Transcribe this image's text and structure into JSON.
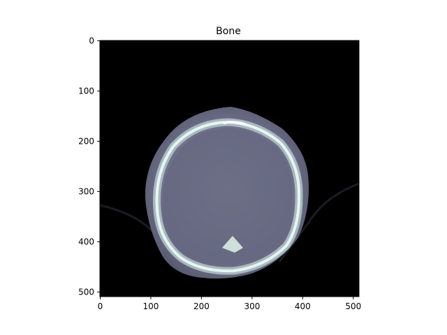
{
  "figure": {
    "title": "Bone",
    "x_ticks": [
      "0",
      "100",
      "200",
      "300",
      "400",
      "500"
    ],
    "y_ticks": [
      "0",
      "100",
      "200",
      "300",
      "400",
      "500"
    ],
    "image_extent": [
      0,
      512
    ],
    "colormap": "bone",
    "colors": {
      "background": "#000000",
      "soft_tissue": "#6f7189",
      "skull_edge": "#a9b8c2",
      "bone_bright": "#e6f6ef",
      "axis": "#000000"
    }
  }
}
